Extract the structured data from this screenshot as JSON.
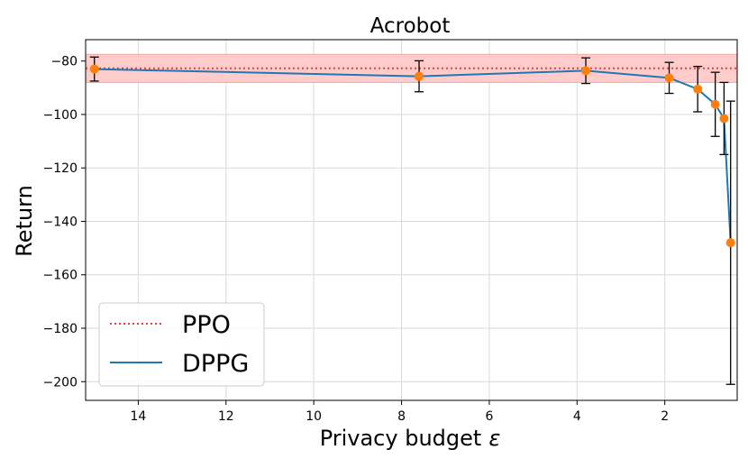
{
  "chart_data": {
    "type": "line",
    "title": "Acrobot",
    "xlabel": "Privacy budget",
    "xlabel_symbol": "ε",
    "ylabel": "Return",
    "xlim": [
      15.2,
      0.35
    ],
    "ylim": [
      -207,
      -72
    ],
    "x_inverted": true,
    "grid": true,
    "legend_position": "lower-left",
    "xticks": [
      14,
      12,
      10,
      8,
      6,
      4,
      2
    ],
    "yticks": [
      -80,
      -100,
      -120,
      -140,
      -160,
      -180,
      -200
    ],
    "xtick_labels": [
      "14",
      "12",
      "10",
      "8",
      "6",
      "4",
      "2"
    ],
    "ytick_labels": [
      "−80",
      "−100",
      "−120",
      "−140",
      "−160",
      "−180",
      "−200"
    ],
    "series": [
      {
        "name": "PPO",
        "style": "dotted",
        "color": "#e8413a",
        "value": -82.7,
        "band": [
          -88.0,
          -77.5
        ],
        "band_color": "#ffcccc"
      },
      {
        "name": "DPPG",
        "style": "solid",
        "color": "#1f77b4",
        "marker_color": "#ff7f0e",
        "x": [
          15.0,
          7.6,
          3.8,
          1.9,
          1.25,
          0.85,
          0.65,
          0.5
        ],
        "y": [
          -83.0,
          -85.7,
          -83.6,
          -86.3,
          -90.5,
          -96.2,
          -101.5,
          -148.0
        ],
        "err": [
          4.5,
          5.8,
          4.8,
          5.8,
          8.5,
          12.0,
          13.5,
          53.0
        ]
      }
    ]
  }
}
